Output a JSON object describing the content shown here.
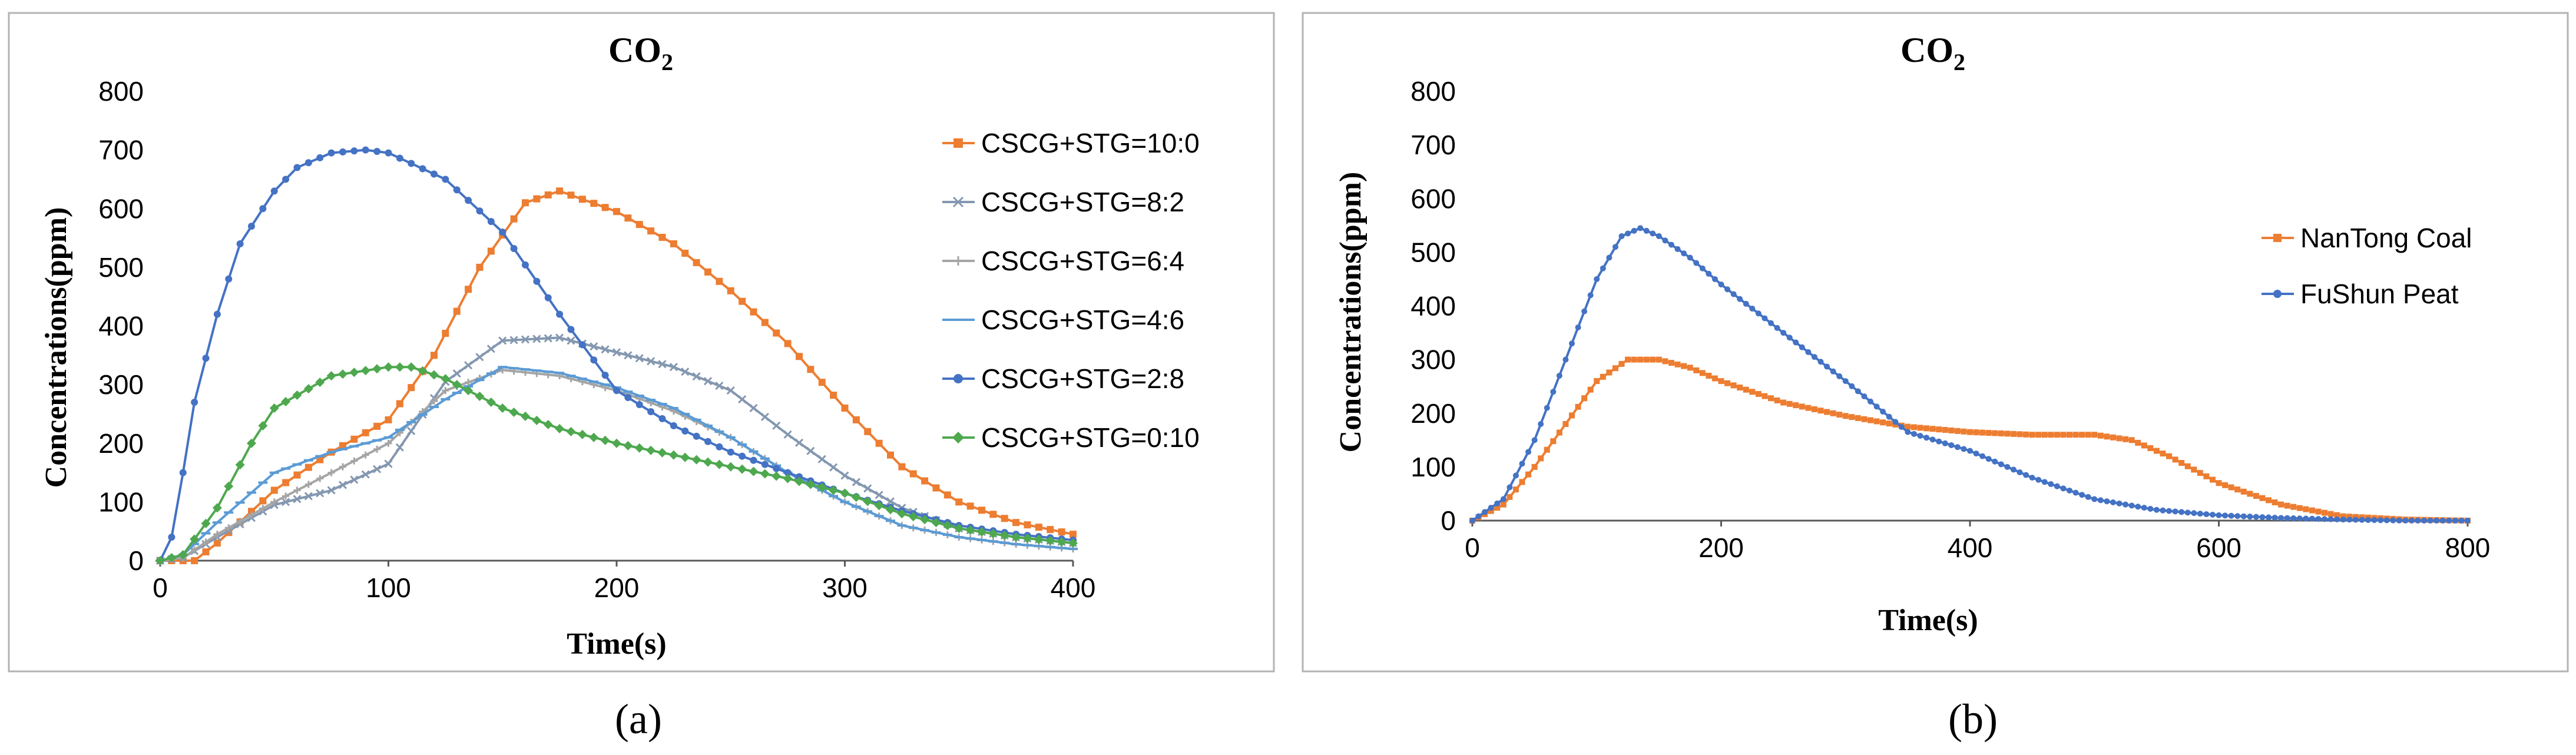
{
  "figure": {
    "caption_a": "(a)",
    "caption_b": "(b)"
  },
  "chart_data": [
    {
      "type": "line",
      "title": "CO",
      "title_subscript": "2",
      "xlabel": "Time(s)",
      "ylabel": "Concentrations(ppm)",
      "xlim": [
        0,
        400
      ],
      "ylim": [
        0,
        800
      ],
      "x_ticks": [
        0,
        100,
        200,
        300,
        400
      ],
      "y_ticks": [
        0,
        100,
        200,
        300,
        400,
        500,
        600,
        700,
        800
      ],
      "grid": false,
      "legend_position": "right",
      "series": [
        {
          "name": "CSCG+STG=10:0",
          "color": "#ED7D31",
          "marker": "square",
          "x": [
            0,
            15,
            25,
            50,
            75,
            100,
            120,
            140,
            160,
            175,
            200,
            225,
            250,
            275,
            300,
            325,
            350,
            375,
            400
          ],
          "values": [
            0,
            0,
            30,
            120,
            185,
            240,
            350,
            500,
            610,
            630,
            595,
            540,
            460,
            370,
            260,
            160,
            100,
            65,
            45
          ]
        },
        {
          "name": "CSCG+STG=8:2",
          "color": "#8497B0",
          "marker": "cross",
          "x": [
            0,
            10,
            25,
            50,
            75,
            100,
            125,
            150,
            175,
            200,
            225,
            250,
            275,
            300,
            325,
            350,
            375,
            400
          ],
          "values": [
            0,
            5,
            40,
            95,
            120,
            165,
            305,
            375,
            380,
            355,
            330,
            290,
            215,
            145,
            90,
            55,
            40,
            30
          ]
        },
        {
          "name": "CSCG+STG=6:4",
          "color": "#A5A5A5",
          "marker": "plus",
          "x": [
            0,
            10,
            25,
            50,
            75,
            100,
            125,
            150,
            175,
            200,
            225,
            250,
            275,
            300,
            325,
            350,
            375,
            400
          ],
          "values": [
            0,
            5,
            45,
            100,
            150,
            200,
            290,
            325,
            315,
            290,
            255,
            210,
            150,
            100,
            60,
            40,
            28,
            20
          ]
        },
        {
          "name": "CSCG+STG=4:6",
          "color": "#5B9BD5",
          "marker": "dash",
          "x": [
            0,
            10,
            25,
            50,
            75,
            100,
            125,
            150,
            175,
            200,
            225,
            250,
            275,
            300,
            325,
            350,
            375,
            400
          ],
          "values": [
            0,
            10,
            65,
            150,
            185,
            210,
            275,
            330,
            320,
            295,
            260,
            210,
            150,
            100,
            60,
            40,
            28,
            20
          ]
        },
        {
          "name": "CSCG+STG=2:8",
          "color": "#4472C4",
          "marker": "circle",
          "x": [
            0,
            5,
            10,
            15,
            25,
            35,
            50,
            60,
            75,
            90,
            100,
            125,
            150,
            175,
            200,
            225,
            250,
            275,
            300,
            325,
            350,
            375,
            400
          ],
          "values": [
            0,
            40,
            150,
            270,
            420,
            540,
            630,
            670,
            695,
            700,
            695,
            650,
            560,
            420,
            290,
            230,
            185,
            150,
            115,
            85,
            60,
            45,
            35
          ]
        },
        {
          "name": "CSCG+STG=0:10",
          "color": "#4EA84E",
          "marker": "diamond",
          "x": [
            0,
            10,
            25,
            40,
            50,
            75,
            100,
            110,
            125,
            150,
            175,
            200,
            225,
            250,
            275,
            300,
            325,
            350,
            375,
            400
          ],
          "values": [
            0,
            10,
            90,
            200,
            260,
            315,
            330,
            330,
            310,
            260,
            225,
            200,
            180,
            160,
            140,
            115,
            80,
            55,
            40,
            30
          ]
        }
      ]
    },
    {
      "type": "line",
      "title": "CO",
      "title_subscript": "2",
      "xlabel": "Time(s)",
      "ylabel": "Concentrations(ppm)",
      "xlim": [
        0,
        800
      ],
      "ylim": [
        0,
        800
      ],
      "x_ticks": [
        0,
        200,
        400,
        600,
        800
      ],
      "y_ticks": [
        0,
        100,
        200,
        300,
        400,
        500,
        600,
        700,
        800
      ],
      "grid": false,
      "legend_position": "right",
      "series": [
        {
          "name": "NanTong Coal",
          "color": "#ED7D31",
          "marker": "square",
          "x": [
            0,
            25,
            50,
            75,
            100,
            125,
            150,
            175,
            200,
            250,
            300,
            350,
            400,
            450,
            500,
            530,
            560,
            600,
            650,
            700,
            750,
            800
          ],
          "values": [
            0,
            30,
            100,
            180,
            260,
            300,
            300,
            285,
            260,
            220,
            195,
            175,
            165,
            160,
            160,
            150,
            120,
            70,
            30,
            8,
            2,
            0
          ]
        },
        {
          "name": "FuShun Peat",
          "color": "#4472C4",
          "marker": "circle",
          "x": [
            0,
            25,
            50,
            75,
            100,
            120,
            135,
            150,
            175,
            200,
            250,
            300,
            350,
            400,
            450,
            500,
            550,
            600,
            650,
            700,
            750,
            800
          ],
          "values": [
            0,
            40,
            150,
            300,
            450,
            530,
            545,
            530,
            490,
            440,
            350,
            260,
            165,
            130,
            80,
            40,
            20,
            10,
            5,
            2,
            0,
            0
          ]
        }
      ]
    }
  ]
}
